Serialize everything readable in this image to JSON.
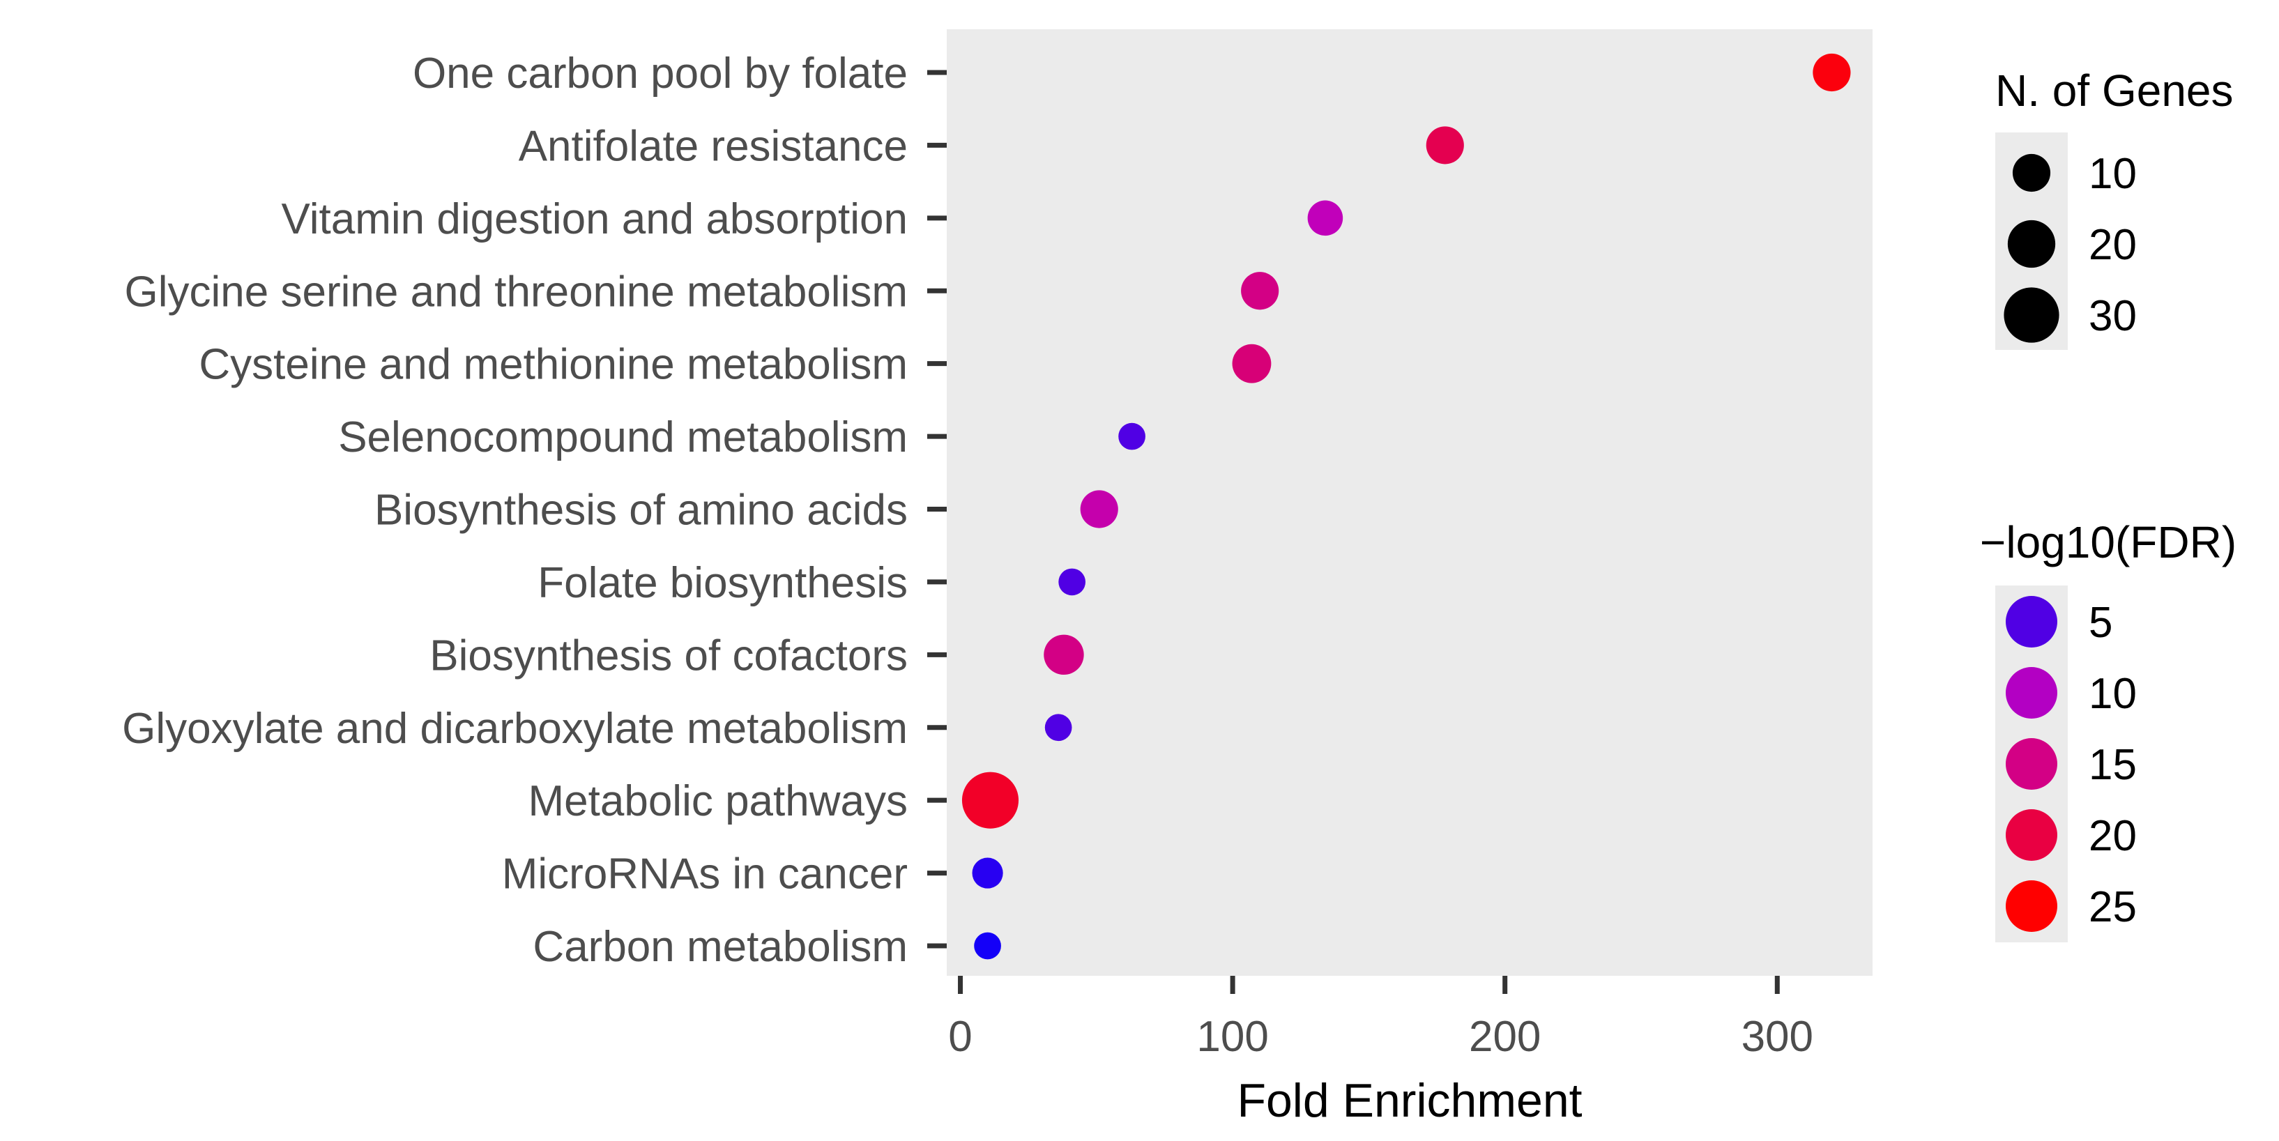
{
  "chart_data": {
    "type": "scatter",
    "title": "",
    "xlabel": "Fold Enrichment",
    "ylabel": "",
    "xlim": [
      -5,
      335
    ],
    "x_ticks": [
      0,
      100,
      200,
      300
    ],
    "x_tick_labels": [
      "0",
      "100",
      "200",
      "300"
    ],
    "grid": false,
    "panel_background": "#ebebeb",
    "categories": [
      "One carbon pool by folate",
      "Antifolate resistance",
      "Vitamin digestion and absorption",
      "Glycine serine and threonine metabolism",
      "Cysteine and methionine metabolism",
      "Selenocompound metabolism",
      "Biosynthesis of amino acids",
      "Folate biosynthesis",
      "Biosynthesis of cofactors",
      "Glyoxylate and dicarboxylate metabolism",
      "Metabolic pathways",
      "MicroRNAs in cancer",
      "Carbon metabolism"
    ],
    "points": [
      {
        "category": "One carbon pool by folate",
        "fold_enrichment": 320,
        "n_genes": 10,
        "neg_log10_fdr": 24
      },
      {
        "category": "Antifolate resistance",
        "fold_enrichment": 178,
        "n_genes": 10,
        "neg_log10_fdr": 19
      },
      {
        "category": "Vitamin digestion and absorption",
        "fold_enrichment": 134,
        "n_genes": 8,
        "neg_log10_fdr": 11
      },
      {
        "category": "Glycine serine and threonine metabolism",
        "fold_enrichment": 110,
        "n_genes": 10,
        "neg_log10_fdr": 15
      },
      {
        "category": "Cysteine and methionine metabolism",
        "fold_enrichment": 107,
        "n_genes": 11,
        "neg_log10_fdr": 16
      },
      {
        "category": "Selenocompound metabolism",
        "fold_enrichment": 63,
        "n_genes": 3,
        "neg_log10_fdr": 5
      },
      {
        "category": "Biosynthesis of amino acids",
        "fold_enrichment": 51,
        "n_genes": 10,
        "neg_log10_fdr": 12
      },
      {
        "category": "Folate biosynthesis",
        "fold_enrichment": 41,
        "n_genes": 3,
        "neg_log10_fdr": 5
      },
      {
        "category": "Biosynthesis of cofactors",
        "fold_enrichment": 38,
        "n_genes": 12,
        "neg_log10_fdr": 15
      },
      {
        "category": "Glyoxylate and dicarboxylate metabolism",
        "fold_enrichment": 36,
        "n_genes": 3,
        "neg_log10_fdr": 5
      },
      {
        "category": "Metabolic pathways",
        "fold_enrichment": 11,
        "n_genes": 32,
        "neg_log10_fdr": 22
      },
      {
        "category": "MicroRNAs in cancer",
        "fold_enrichment": 10,
        "n_genes": 5,
        "neg_log10_fdr": 3
      },
      {
        "category": "Carbon metabolism",
        "fold_enrichment": 10,
        "n_genes": 3,
        "neg_log10_fdr": 2
      }
    ],
    "size_legend": {
      "title": "N. of Genes",
      "values": [
        10,
        20,
        30
      ],
      "labels": [
        "10",
        "20",
        "30"
      ]
    },
    "color_legend": {
      "title": "−log10(FDR)",
      "values": [
        5,
        10,
        15,
        20,
        25
      ],
      "labels": [
        "5",
        "10",
        "15",
        "20",
        "25"
      ]
    },
    "color_scale": {
      "low": "#0000ff",
      "mid": "#bf00bf",
      "high": "#ff0000",
      "domain": [
        1,
        25
      ]
    }
  }
}
